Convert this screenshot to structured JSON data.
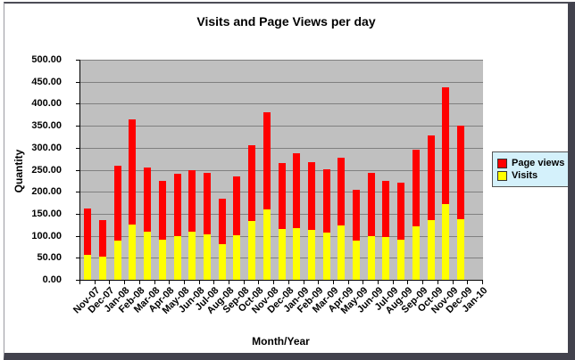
{
  "chart_data": {
    "type": "bar",
    "stacked": true,
    "title": "Visits and Page Views per day",
    "xlabel": "Month/Year",
    "ylabel": "Quantity",
    "ylim": [
      0,
      500
    ],
    "ytick_step": 50,
    "ytick_labels": [
      "500.00",
      "450.00",
      "400.00",
      "350.00",
      "300.00",
      "250.00",
      "200.00",
      "150.00",
      "100.00",
      "50.00",
      "0.00"
    ],
    "grid": true,
    "plot_bg": "#c0c0c0",
    "grid_color": "#808080",
    "legend_position": "right",
    "legend_bg": "#d4f1fb",
    "categories": [
      "Nov-07",
      "Dec-07",
      "Jan-08",
      "Feb-08",
      "Mar-08",
      "Apr-08",
      "May-08",
      "Jun-08",
      "Jul-08",
      "Aug-08",
      "Sep-08",
      "Oct-08",
      "Nov-08",
      "Dec-08",
      "Jan-09",
      "Feb-09",
      "Mar-09",
      "Apr-09",
      "May-09",
      "Jun-09",
      "Jul-09",
      "Aug-09",
      "Sep-09",
      "Oct-09",
      "Nov-09",
      "Dec-09",
      "Jan-10"
    ],
    "series": [
      {
        "name": "Visits",
        "color": "#ffff00",
        "values": [
          57,
          52,
          90,
          125,
          110,
          92,
          100,
          110,
          103,
          80,
          102,
          133,
          160,
          115,
          117,
          113,
          108,
          123,
          90,
          100,
          97,
          92,
          122,
          136,
          173,
          138,
          0
        ]
      },
      {
        "name": "Page views",
        "color": "#ff0000",
        "values": [
          105,
          83,
          170,
          240,
          145,
          133,
          140,
          140,
          140,
          105,
          133,
          172,
          220,
          150,
          171,
          155,
          144,
          155,
          115,
          142,
          128,
          128,
          173,
          192,
          265,
          212,
          0
        ]
      }
    ],
    "legend": [
      {
        "label": "Page views",
        "color": "#ff0000"
      },
      {
        "label": "Visits",
        "color": "#ffff00"
      }
    ]
  }
}
